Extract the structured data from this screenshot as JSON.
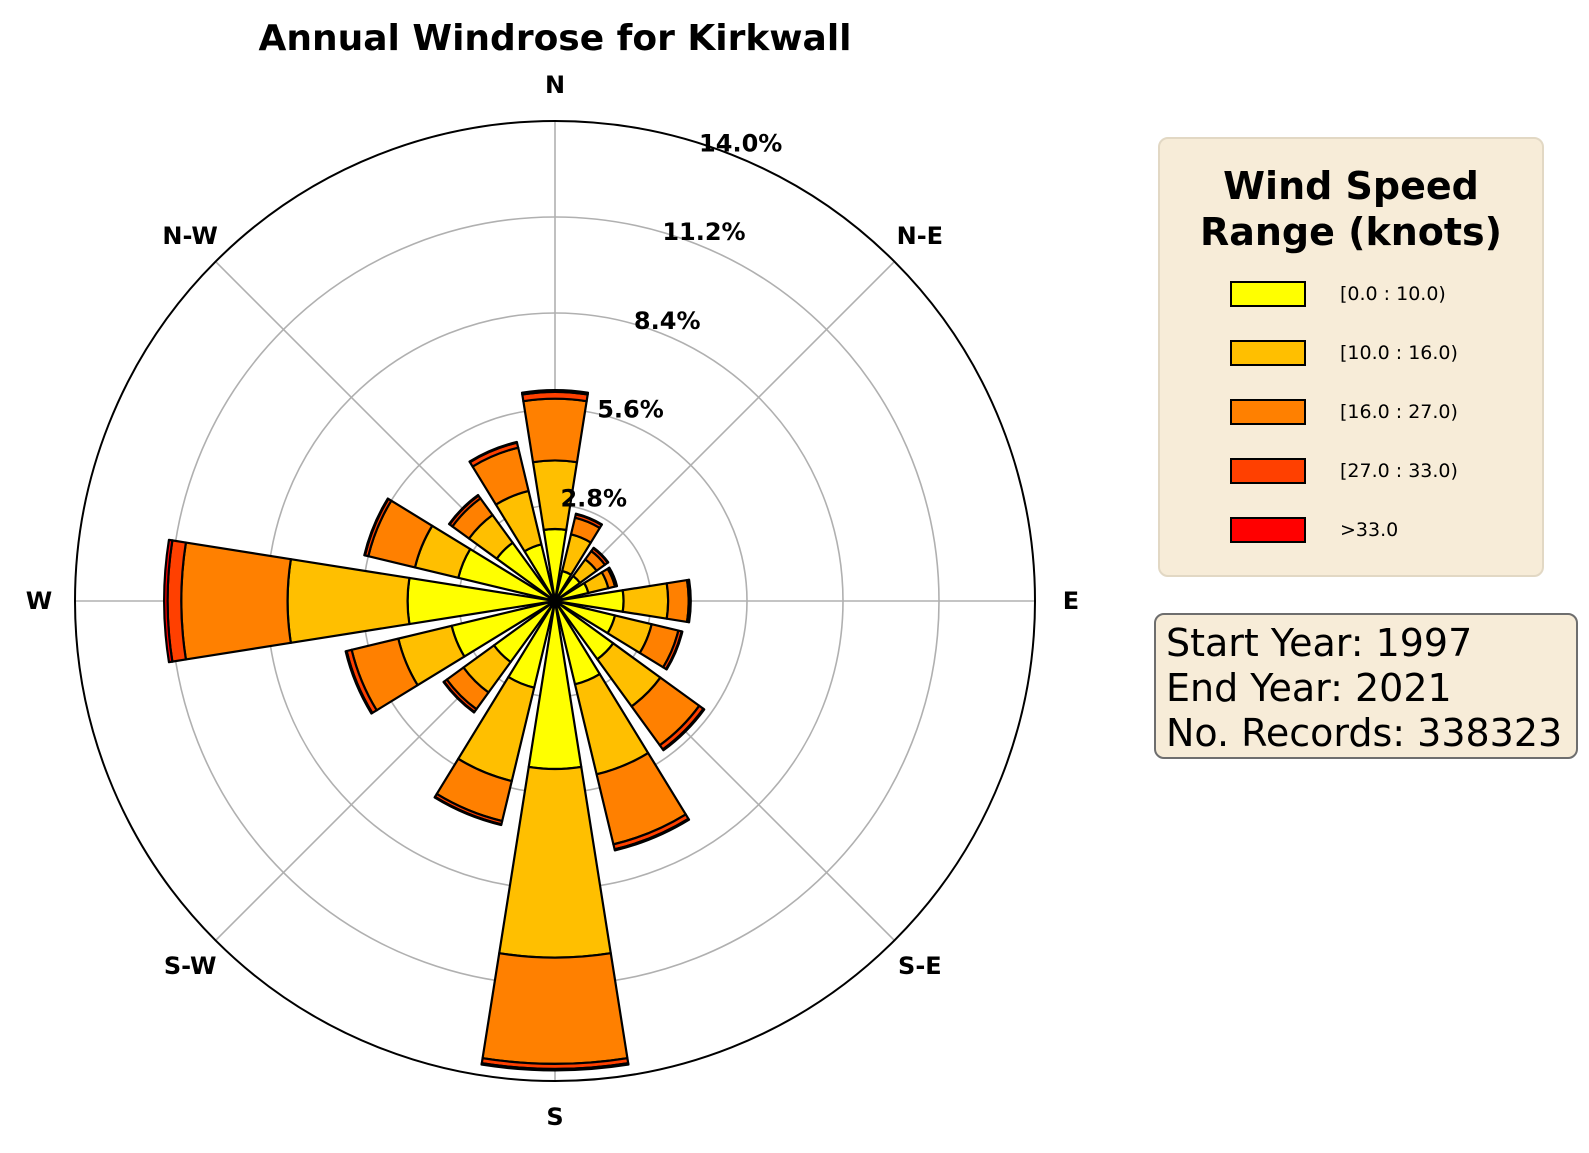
{
  "chart_data": {
    "type": "windrose",
    "title": "Annual Windrose for Kirkwall",
    "directions": [
      "N",
      "N-E",
      "E",
      "S-E",
      "S",
      "S-W",
      "W",
      "N-W"
    ],
    "radial_ticks": [
      "2.8%",
      "5.6%",
      "8.4%",
      "11.2%",
      "14.0%"
    ],
    "radial_max": 14.0,
    "legend": {
      "title_line1": "Wind Speed",
      "title_line2": "Range (knots)",
      "bins": [
        {
          "label": "[0.0 : 10.0)",
          "color": "#ffff00"
        },
        {
          "label": "[10.0 : 16.0)",
          "color": "#ffbf00"
        },
        {
          "label": "[16.0 : 27.0)",
          "color": "#ff8000"
        },
        {
          "label": "[27.0 : 33.0)",
          "color": "#ff4000"
        },
        {
          "label": ">33.0",
          "color": "#ff0000"
        }
      ]
    },
    "sectors": [
      {
        "angle": 0,
        "values": [
          2.1,
          2.0,
          1.8,
          0.2,
          0.05
        ]
      },
      {
        "angle": 22.5,
        "values": [
          0.9,
          1.1,
          0.5,
          0.1,
          0.02
        ]
      },
      {
        "angle": 45,
        "values": [
          0.9,
          0.6,
          0.3,
          0.1,
          0.02
        ]
      },
      {
        "angle": 67.5,
        "values": [
          1.0,
          0.6,
          0.2,
          0.05,
          0.01
        ]
      },
      {
        "angle": 90,
        "values": [
          2.0,
          1.3,
          0.6,
          0.05,
          0.01
        ]
      },
      {
        "angle": 112.5,
        "values": [
          1.8,
          1.1,
          0.8,
          0.1,
          0.02
        ]
      },
      {
        "angle": 135,
        "values": [
          2.1,
          1.7,
          1.4,
          0.15,
          0.03
        ]
      },
      {
        "angle": 157.5,
        "values": [
          2.5,
          2.7,
          2.1,
          0.15,
          0.03
        ]
      },
      {
        "angle": 180,
        "values": [
          4.9,
          5.5,
          3.1,
          0.15,
          0.04
        ]
      },
      {
        "angle": 202.5,
        "values": [
          2.6,
          2.8,
          1.2,
          0.1,
          0.02
        ]
      },
      {
        "angle": 225,
        "values": [
          2.2,
          1.1,
          0.6,
          0.1,
          0.02
        ]
      },
      {
        "angle": 247.5,
        "values": [
          3.1,
          1.6,
          1.4,
          0.15,
          0.03
        ]
      },
      {
        "angle": 270,
        "values": [
          4.3,
          3.5,
          3.1,
          0.4,
          0.1
        ]
      },
      {
        "angle": 292.5,
        "values": [
          2.9,
          1.3,
          1.4,
          0.1,
          0.02
        ]
      },
      {
        "angle": 315,
        "values": [
          2.1,
          1.0,
          0.6,
          0.1,
          0.02
        ]
      },
      {
        "angle": 337.5,
        "values": [
          1.7,
          1.6,
          1.3,
          0.15,
          0.02
        ]
      }
    ]
  },
  "info": {
    "start_year": "Start Year: 1997",
    "end_year": "End Year: 2021",
    "records": "No. Records: 338323"
  }
}
